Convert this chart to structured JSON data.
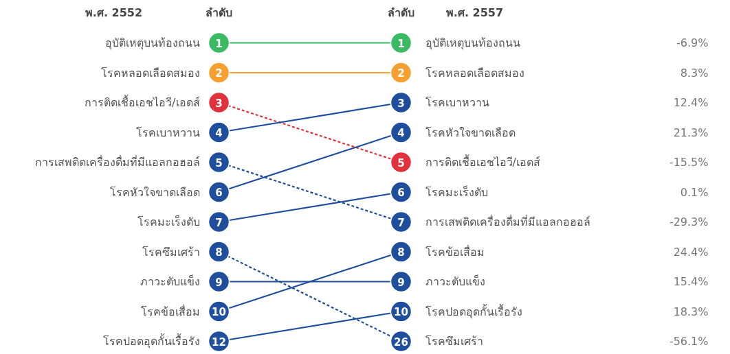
{
  "chart_data": {
    "type": "other",
    "data_labels": true,
    "categories": [
      "พ.ศ. 2552",
      "พ.ศ. 2557"
    ],
    "annotations": [
      "ลำดับ",
      "ลำดับ",
      "-6.9%",
      "8.3%",
      "-15.5%",
      "12.4%",
      "-29.3%",
      "21.3%",
      "0.1%",
      "-56.1%",
      "15.4%",
      "24.4%",
      "18.3%"
    ],
    "series": [
      {
        "name": "อุบัติเหตุบนท้องถนน",
        "color": "#3cb963",
        "values": [
          1,
          1
        ],
        "line_style": "solid"
      },
      {
        "name": "โรคหลอดเลือดสมอง",
        "color": "#f5a030",
        "values": [
          2,
          2
        ],
        "line_style": "solid"
      },
      {
        "name": "การติดเชื้อเอชไอวี/เอดส์",
        "color": "#e0323c",
        "values": [
          3,
          5
        ],
        "line_style": "dashed"
      },
      {
        "name": "โรคเบาหวาน",
        "color": "#1f4e9c",
        "values": [
          4,
          3
        ],
        "line_style": "solid"
      },
      {
        "name": "การเสพติดเครื่องดื่มที่มีแอลกอฮอล์",
        "color": "#1f4e9c",
        "values": [
          5,
          7
        ],
        "line_style": "dashed"
      },
      {
        "name": "โรคหัวใจขาดเลือด",
        "color": "#1f4e9c",
        "values": [
          6,
          4
        ],
        "line_style": "solid"
      },
      {
        "name": "โรคมะเร็งตับ",
        "color": "#1f4e9c",
        "values": [
          7,
          6
        ],
        "line_style": "solid"
      },
      {
        "name": "โรคซึมเศร้า",
        "color": "#1f4e9c",
        "values": [
          8,
          26
        ],
        "line_style": "dashed"
      },
      {
        "name": "ภาวะตับแข็ง",
        "color": "#1f4e9c",
        "values": [
          9,
          9
        ],
        "line_style": "solid"
      },
      {
        "name": "โรคข้อเสื่อม",
        "color": "#1f4e9c",
        "values": [
          10,
          8
        ],
        "line_style": "solid"
      },
      {
        "name": "โรคปอดอุดกั้นเรื้อรัง",
        "color": "#1f4e9c",
        "values": [
          12,
          10
        ],
        "line_style": "solid"
      }
    ]
  }
}
